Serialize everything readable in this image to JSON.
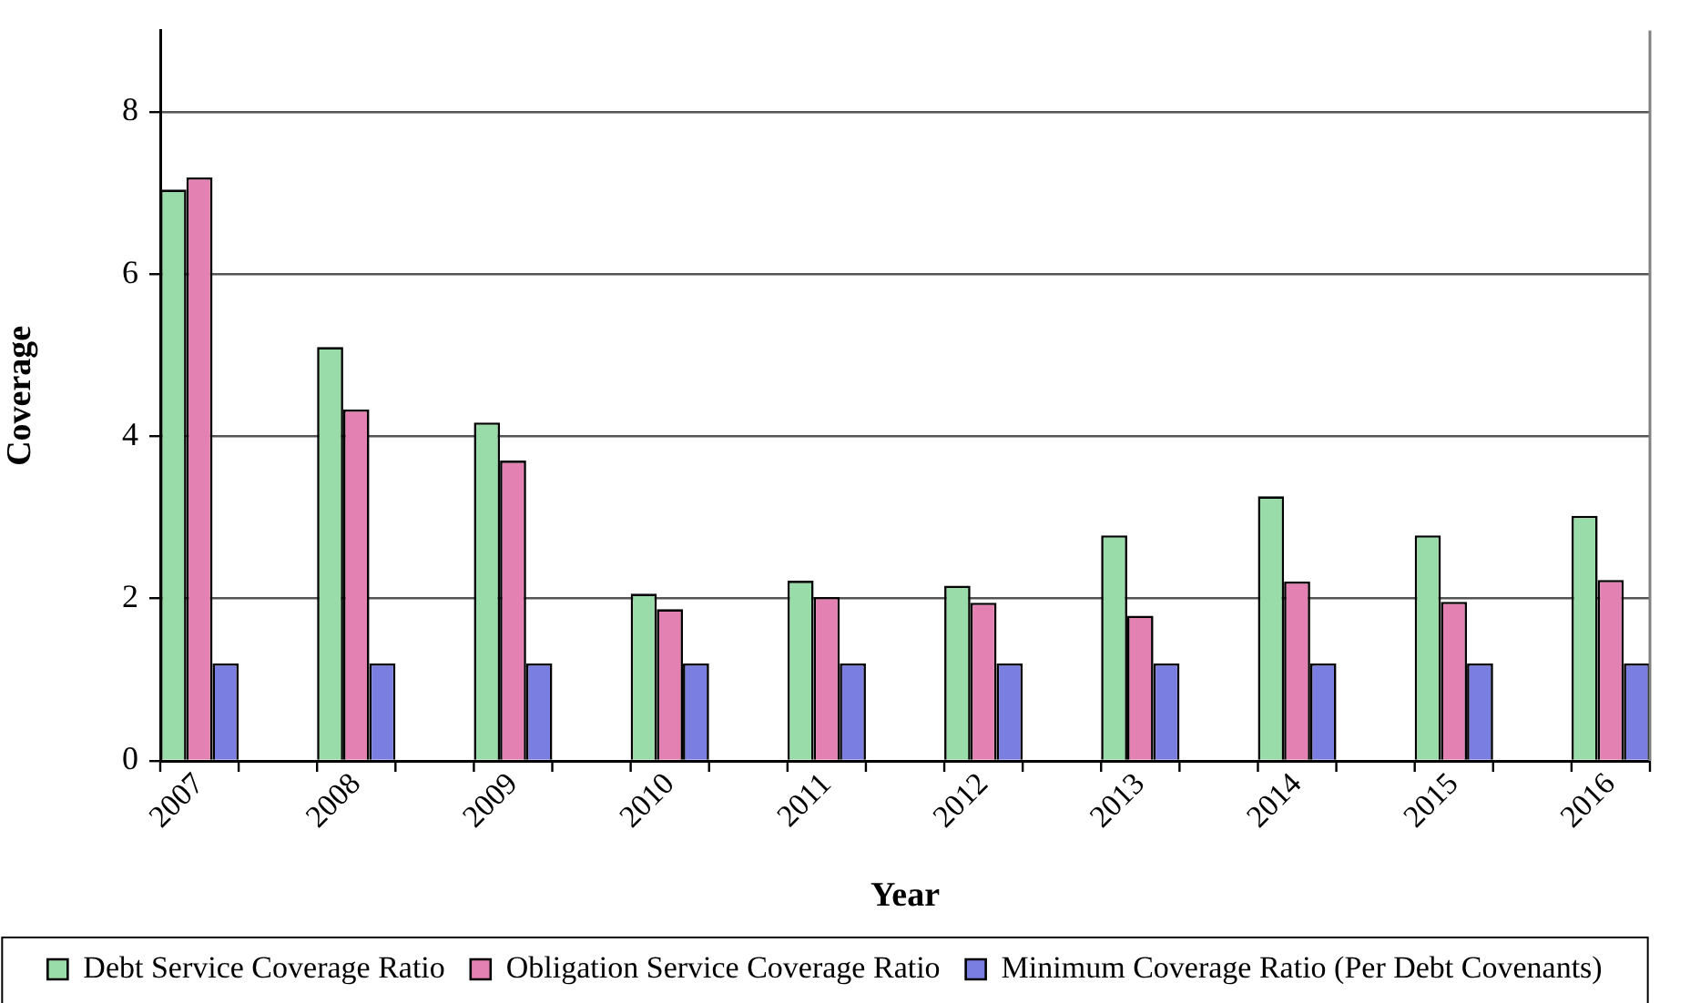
{
  "chart_data": {
    "type": "bar",
    "xlabel": "Year",
    "ylabel": "Coverage",
    "categories": [
      "2007",
      "2008",
      "2009",
      "2010",
      "2011",
      "2012",
      "2013",
      "2014",
      "2015",
      "2016"
    ],
    "ylim": [
      0,
      9
    ],
    "yticks": [
      0,
      2,
      4,
      6,
      8
    ],
    "grid": "y",
    "legend": "bottom",
    "series": [
      {
        "name": "Debt Service Coverage Ratio",
        "color": "#99dba9",
        "values": [
          7.04,
          5.1,
          4.17,
          2.06,
          2.22,
          2.16,
          2.78,
          3.26,
          2.78,
          3.02
        ]
      },
      {
        "name": "Obligation Service Coverage Ratio",
        "color": "#e382b2",
        "values": [
          7.19,
          4.33,
          3.7,
          1.87,
          2.02,
          1.95,
          1.79,
          2.21,
          1.96,
          2.23
        ]
      },
      {
        "name": "Minimum Coverage Ratio (Per Debt Covenants)",
        "color": "#7a7ee0",
        "values": [
          1.2,
          1.2,
          1.2,
          1.2,
          1.2,
          1.2,
          1.2,
          1.2,
          1.2,
          1.2
        ]
      }
    ]
  }
}
